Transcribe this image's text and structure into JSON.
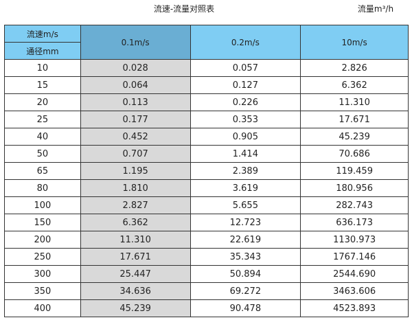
{
  "title": "流速-流量对照表",
  "unit": "流量m³/h",
  "header": {
    "velocity_label": "流速m/s",
    "diameter_label": "通径mm",
    "columns": [
      "0.1m/s",
      "0.2m/s",
      "10m/s"
    ]
  },
  "colors": {
    "header": "#7fcdf3",
    "header_highlight": "#6aaed3",
    "column_highlight": "#d9d9d9"
  },
  "rows": [
    [
      "10",
      "0.028",
      "0.057",
      "2.826"
    ],
    [
      "15",
      "0.064",
      "0.127",
      "6.362"
    ],
    [
      "20",
      "0.113",
      "0.226",
      "11.310"
    ],
    [
      "25",
      "0.177",
      "0.353",
      "17.671"
    ],
    [
      "40",
      "0.452",
      "0.905",
      "45.239"
    ],
    [
      "50",
      "0.707",
      "1.414",
      "70.686"
    ],
    [
      "65",
      "1.195",
      "2.389",
      "119.459"
    ],
    [
      "80",
      "1.810",
      "3.619",
      "180.956"
    ],
    [
      "100",
      "2.827",
      "5.655",
      "282.743"
    ],
    [
      "150",
      "6.362",
      "12.723",
      "636.173"
    ],
    [
      "200",
      "11.310",
      "22.619",
      "1130.973"
    ],
    [
      "250",
      "17.671",
      "35.343",
      "1767.146"
    ],
    [
      "300",
      "25.447",
      "50.894",
      "2544.690"
    ],
    [
      "350",
      "34.636",
      "69.272",
      "3463.606"
    ],
    [
      "400",
      "45.239",
      "90.478",
      "4523.893"
    ]
  ]
}
